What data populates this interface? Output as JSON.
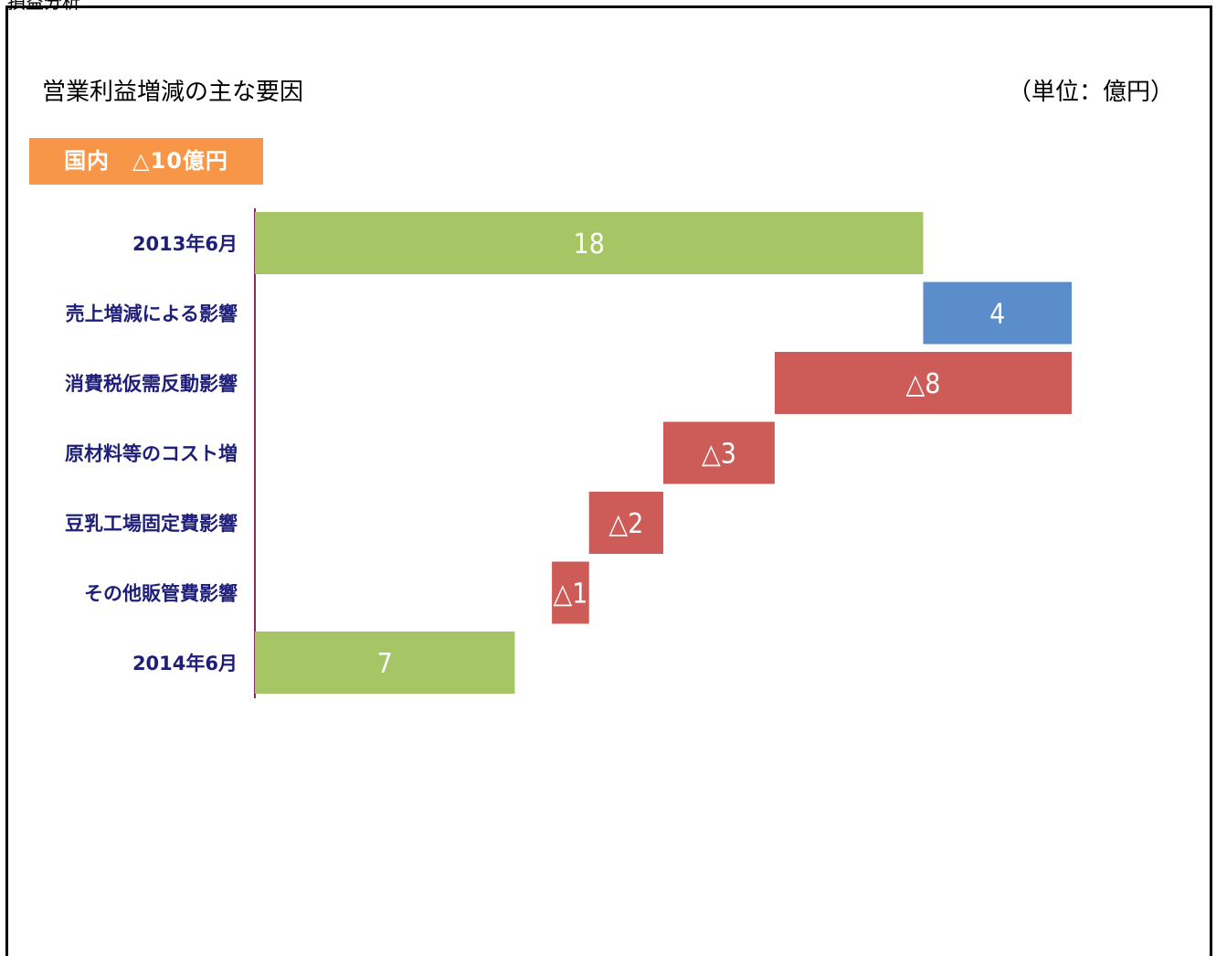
{
  "header": {
    "top_label": "損益分析",
    "title": "営業利益増減の主な要因",
    "unit": "（単位：億円）",
    "summary": "国内　△10億円"
  },
  "colors": {
    "total": "#a6c564",
    "increase": "#5b8dcb",
    "decrease": "#cd5b57",
    "summary_bg": "#f79646",
    "axis": "#8b2b5e",
    "category_text": "#1f1f7a"
  },
  "chart_data": {
    "type": "bar",
    "orientation": "horizontal-waterfall",
    "categories": [
      "2013年6月",
      "売上増減による影響",
      "消費税仮需反動影響",
      "原材料等のコスト増",
      "豆乳工場固定費影響",
      "その他販管費影響",
      "2014年6月"
    ],
    "bars": [
      {
        "category": "2013年6月",
        "kind": "total",
        "start": 0,
        "end": 18,
        "label": "18"
      },
      {
        "category": "売上増減による影響",
        "kind": "increase",
        "start": 18,
        "end": 22,
        "label": "4"
      },
      {
        "category": "消費税仮需反動影響",
        "kind": "decrease",
        "start": 22,
        "end": 14,
        "label": "△8"
      },
      {
        "category": "原材料等のコスト増",
        "kind": "decrease",
        "start": 14,
        "end": 11,
        "label": "△3"
      },
      {
        "category": "豆乳工場固定費影響",
        "kind": "decrease",
        "start": 11,
        "end": 9,
        "label": "△2"
      },
      {
        "category": "その他販管費影響",
        "kind": "decrease",
        "start": 9,
        "end": 8,
        "label": "△1"
      },
      {
        "category": "2014年6月",
        "kind": "total",
        "start": 0,
        "end": 7,
        "label": "7"
      }
    ],
    "xlim": [
      0,
      22
    ],
    "grid": false,
    "legend": "none"
  }
}
